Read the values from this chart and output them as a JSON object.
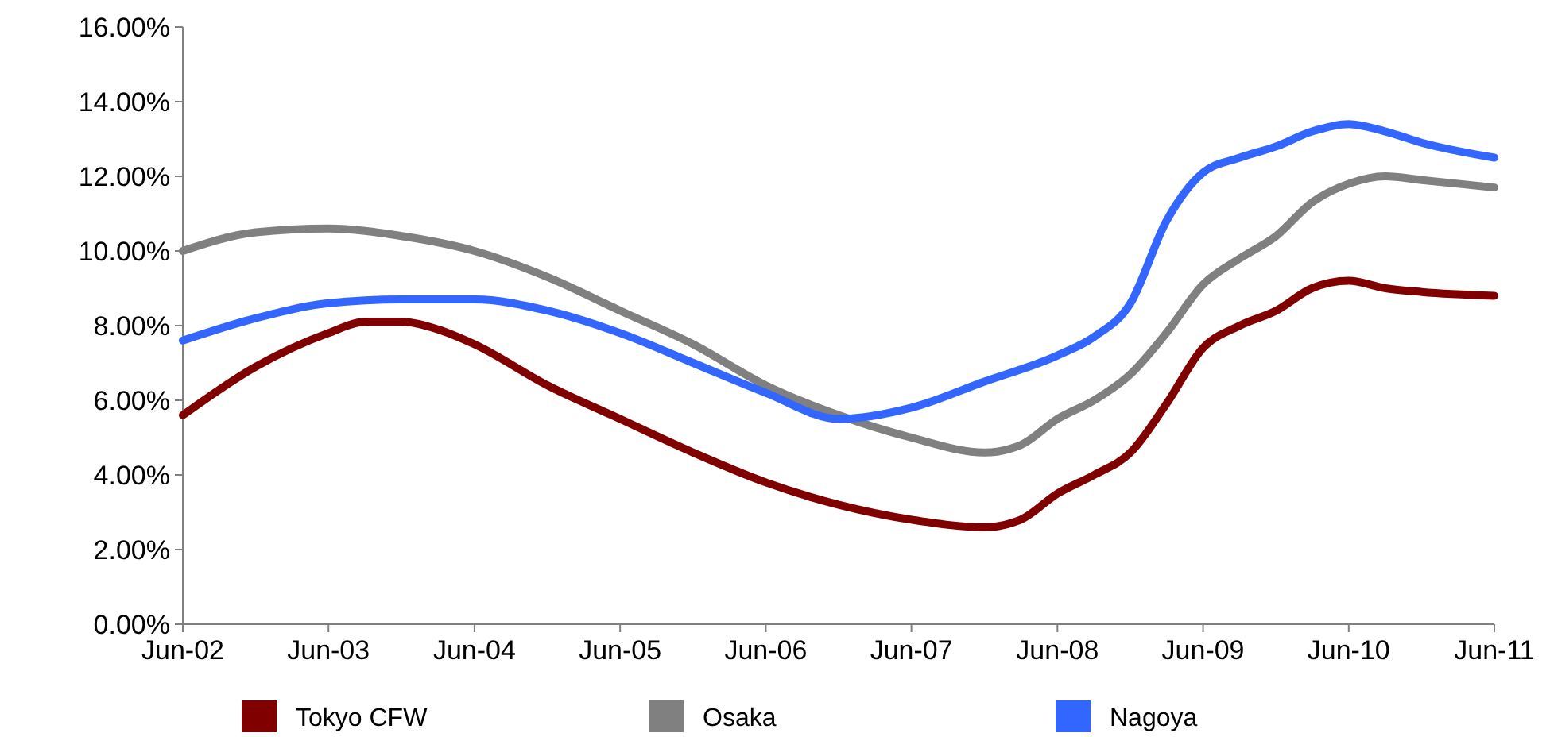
{
  "chart_data": {
    "type": "line",
    "xlim": [
      "2002-06",
      "2011-06"
    ],
    "ylim": [
      0,
      16
    ],
    "xticks": [
      {
        "value": "2002-06",
        "label": "Jun-02"
      },
      {
        "value": "2003-06",
        "label": "Jun-03"
      },
      {
        "value": "2004-06",
        "label": "Jun-04"
      },
      {
        "value": "2005-06",
        "label": "Jun-05"
      },
      {
        "value": "2006-06",
        "label": "Jun-06"
      },
      {
        "value": "2007-06",
        "label": "Jun-07"
      },
      {
        "value": "2008-06",
        "label": "Jun-08"
      },
      {
        "value": "2009-06",
        "label": "Jun-09"
      },
      {
        "value": "2010-06",
        "label": "Jun-10"
      },
      {
        "value": "2011-06",
        "label": "Jun-11"
      }
    ],
    "yticks": [
      {
        "value": 0,
        "label": "0.00%"
      },
      {
        "value": 2,
        "label": "2.00%"
      },
      {
        "value": 4,
        "label": "4.00%"
      },
      {
        "value": 6,
        "label": "6.00%"
      },
      {
        "value": 8,
        "label": "8.00%"
      },
      {
        "value": 10,
        "label": "10.00%"
      },
      {
        "value": 12,
        "label": "12.00%"
      },
      {
        "value": 14,
        "label": "14.00%"
      },
      {
        "value": 16,
        "label": "16.00%"
      }
    ],
    "grid": false,
    "legend": "bottom",
    "marker": "none",
    "line_style": "solid",
    "series": [
      {
        "name": "Tokyo CFW",
        "color": "#800000",
        "x": [
          "2002-06",
          "2002-12",
          "2003-06",
          "2003-09",
          "2003-12",
          "2004-03",
          "2004-06",
          "2004-12",
          "2005-06",
          "2005-12",
          "2006-06",
          "2006-12",
          "2007-06",
          "2007-12",
          "2008-03",
          "2008-06",
          "2008-09",
          "2008-12",
          "2009-03",
          "2009-06",
          "2009-09",
          "2009-12",
          "2010-03",
          "2010-06",
          "2010-09",
          "2010-12",
          "2011-06"
        ],
        "values": [
          5.6,
          6.9,
          7.8,
          8.1,
          8.1,
          7.9,
          7.5,
          6.4,
          5.5,
          4.6,
          3.8,
          3.2,
          2.8,
          2.6,
          2.8,
          3.5,
          4.0,
          4.6,
          5.9,
          7.4,
          8.0,
          8.4,
          9.0,
          9.2,
          9.0,
          8.9,
          8.8
        ]
      },
      {
        "name": "Osaka",
        "color": "#808080",
        "x": [
          "2002-06",
          "2002-12",
          "2003-06",
          "2003-12",
          "2004-06",
          "2004-12",
          "2005-06",
          "2005-12",
          "2006-06",
          "2006-12",
          "2007-06",
          "2007-12",
          "2008-03",
          "2008-06",
          "2008-09",
          "2008-12",
          "2009-03",
          "2009-06",
          "2009-09",
          "2009-12",
          "2010-03",
          "2010-06",
          "2010-09",
          "2010-12",
          "2011-06"
        ],
        "values": [
          10.0,
          10.5,
          10.6,
          10.4,
          10.0,
          9.3,
          8.4,
          7.5,
          6.4,
          5.6,
          5.0,
          4.6,
          4.8,
          5.5,
          6.0,
          6.7,
          7.8,
          9.1,
          9.8,
          10.4,
          11.3,
          11.8,
          12.0,
          11.9,
          11.7
        ]
      },
      {
        "name": "Nagoya",
        "color": "#3366ff",
        "x": [
          "2002-06",
          "2002-12",
          "2003-06",
          "2003-12",
          "2004-06",
          "2004-12",
          "2005-06",
          "2005-12",
          "2006-06",
          "2006-12",
          "2007-06",
          "2007-12",
          "2008-06",
          "2008-09",
          "2008-12",
          "2009-03",
          "2009-06",
          "2009-09",
          "2009-12",
          "2010-03",
          "2010-06",
          "2010-09",
          "2010-12",
          "2011-06"
        ],
        "values": [
          7.6,
          8.2,
          8.6,
          8.7,
          8.7,
          8.4,
          7.8,
          7.0,
          6.2,
          5.5,
          5.8,
          6.5,
          7.2,
          7.7,
          8.6,
          10.8,
          12.1,
          12.5,
          12.8,
          13.2,
          13.4,
          13.2,
          12.9,
          12.5
        ]
      }
    ]
  }
}
